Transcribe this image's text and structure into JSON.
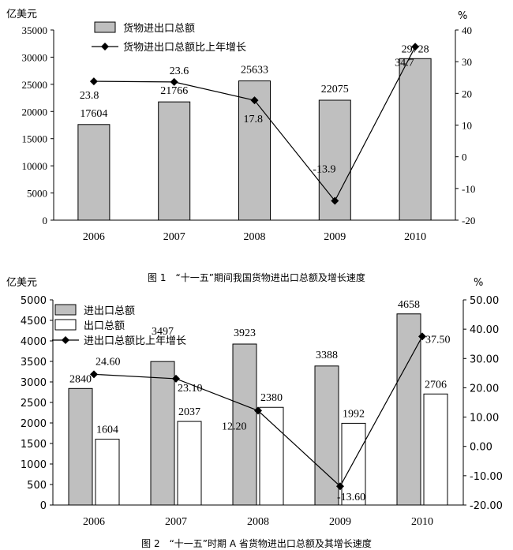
{
  "charts": [
    {
      "caption": "图 1　“十一五”期间我国货物进出口总额及增长速度",
      "left_unit": "亿美元",
      "right_unit": "%",
      "legend": [
        "货物进出口总额",
        "货物进出口总额比上年增长"
      ]
    },
    {
      "caption": "图 2　“十一五”时期 A 省货物进出口总额及其增长速度",
      "left_unit": "亿美元",
      "right_unit": "%",
      "legend": [
        "进出口总额",
        "出口总额",
        "进出口总额比上年增长"
      ]
    }
  ],
  "chart_data": [
    {
      "type": "bar",
      "categories": [
        "2006",
        "2007",
        "2008",
        "2009",
        "2010"
      ],
      "series": [
        {
          "name": "货物进出口总额",
          "type": "bar",
          "axis": "left",
          "color": "#bfbfbf",
          "values": [
            17604,
            21766,
            25633,
            22075,
            29728
          ],
          "labels": [
            "17604",
            "21766",
            "25633",
            "22075",
            "29728"
          ]
        },
        {
          "name": "货物进出口总额比上年增长",
          "type": "line",
          "axis": "right",
          "color": "#000000",
          "values": [
            23.8,
            23.6,
            17.8,
            -13.9,
            34.7
          ],
          "labels": [
            "23.8",
            "23.6",
            "17.8",
            "-13.9",
            "34.7"
          ]
        }
      ],
      "ylim_left": [
        0,
        35000
      ],
      "yticks_left": [
        "0",
        "5000",
        "10000",
        "15000",
        "20000",
        "25000",
        "30000",
        "35000"
      ],
      "ylim_right": [
        -20,
        40
      ],
      "yticks_right": [
        "-20",
        "-10",
        "0",
        "10",
        "20",
        "30",
        "40"
      ],
      "legend_position": "top-left"
    },
    {
      "type": "bar",
      "categories": [
        "2006",
        "2007",
        "2008",
        "2009",
        "2010"
      ],
      "series": [
        {
          "name": "进出口总额",
          "type": "bar",
          "axis": "left",
          "color": "#bfbfbf",
          "values": [
            2840,
            3497,
            3923,
            3388,
            4658
          ],
          "labels": [
            "2840",
            "3497",
            "3923",
            "3388",
            "4658"
          ]
        },
        {
          "name": "出口总额",
          "type": "bar",
          "axis": "left",
          "color": "#ffffff",
          "values": [
            1604,
            2037,
            2380,
            1992,
            2706
          ],
          "labels": [
            "1604",
            "2037",
            "2380",
            "1992",
            "2706"
          ]
        },
        {
          "name": "进出口总额比上年增长",
          "type": "line",
          "axis": "right",
          "color": "#000000",
          "values": [
            24.6,
            23.1,
            12.2,
            -13.6,
            37.5
          ],
          "labels": [
            "24.60",
            "23.10",
            "12.20",
            "-13.60",
            "37.50"
          ]
        }
      ],
      "ylim_left": [
        0,
        5000
      ],
      "yticks_left": [
        "0",
        "500",
        "1000",
        "1500",
        "2000",
        "2500",
        "3000",
        "3500",
        "4000",
        "4500",
        "5000"
      ],
      "ylim_right": [
        -20,
        50
      ],
      "yticks_right": [
        "-20.00",
        "-10.00",
        "0.00",
        "10.00",
        "20.00",
        "30.00",
        "40.00",
        "50.00"
      ],
      "legend_position": "top-left"
    }
  ]
}
